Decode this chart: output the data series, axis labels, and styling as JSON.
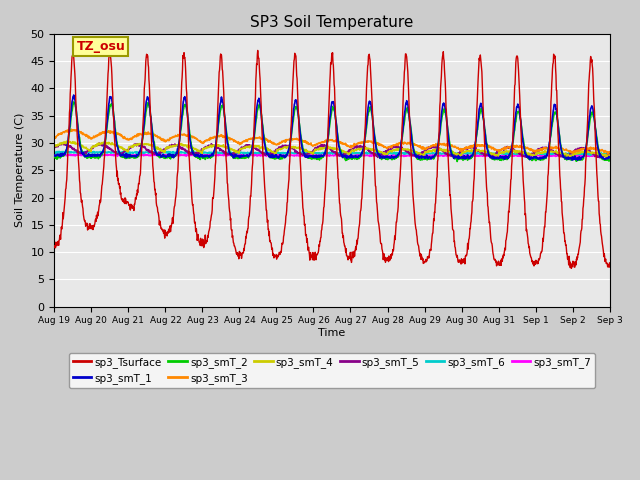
{
  "title": "SP3 Soil Temperature",
  "xlabel": "Time",
  "ylabel": "Soil Temperature (C)",
  "ylim": [
    0,
    50
  ],
  "yticks": [
    0,
    5,
    10,
    15,
    20,
    25,
    30,
    35,
    40,
    45,
    50
  ],
  "legend_label": "TZ_osu",
  "series_colors": {
    "sp3_Tsurface": "#cc0000",
    "sp3_smT_1": "#0000cc",
    "sp3_smT_2": "#00cc00",
    "sp3_smT_3": "#ff8800",
    "sp3_smT_4": "#cccc00",
    "sp3_smT_5": "#880088",
    "sp3_smT_6": "#00cccc",
    "sp3_smT_7": "#ff00ff"
  },
  "x_tick_labels": [
    "Aug 19",
    "Aug 20",
    "Aug 21",
    "Aug 22",
    "Aug 23",
    "Aug 24",
    "Aug 25",
    "Aug 26",
    "Aug 27",
    "Aug 28",
    "Aug 29",
    "Aug 30",
    "Aug 31",
    "Sep 1",
    "Sep 2",
    "Sep 3"
  ],
  "n_points": 1440,
  "n_days": 15
}
